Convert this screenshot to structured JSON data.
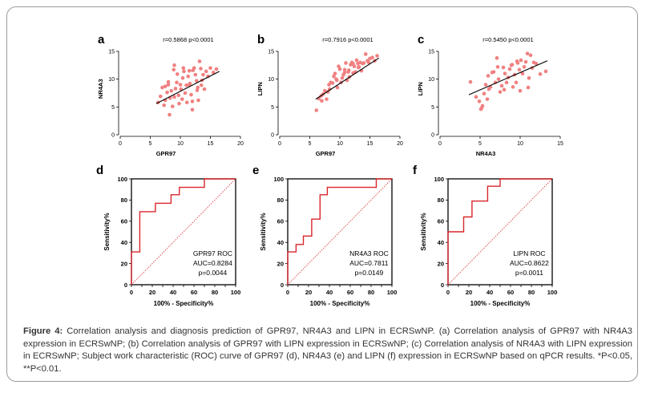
{
  "caption": {
    "label": "Figure 4:",
    "text": " Correlation analysis and diagnosis prediction of GPR97, NR4A3 and LIPN in ECRSwNP. (a) Correlation analysis of GPR97 with NR4A3 expression in ECRSwNP; (b) Correlation analysis of GPR97 with LIPN expression in ECRSwNP; (c) Correlation analysis of NR4A3 with LIPN expression in ECRSwNP; Subject work characteristic (ROC) curve of GPR97 (d), NR4A3 (e) and LIPN (f) expression in ECRSwNP based on qPCR results. *P<0.05, **P<0.01."
  },
  "colors": {
    "points": "#f08080",
    "roc": "#d8262b",
    "fit": "#000000",
    "axis": "#000000"
  },
  "chart_data": [
    {
      "panel": "a",
      "type": "scatter",
      "annotation": "r=0.5868  p<0.0001",
      "xlabel": "GPR97",
      "ylabel": "NR4A3",
      "xlim": [
        0,
        20
      ],
      "ylim": [
        0,
        15
      ],
      "xticks": [
        0,
        5,
        10,
        15,
        20
      ],
      "yticks": [
        0,
        5,
        10,
        15
      ],
      "fit": {
        "x": [
          6,
          16.5
        ],
        "y": [
          5.6,
          11.4
        ]
      },
      "x": [
        6.3,
        6.7,
        7.0,
        7.3,
        7.5,
        7.8,
        8.0,
        8.2,
        8.3,
        8.5,
        8.7,
        8.9,
        9.0,
        9.2,
        9.4,
        9.5,
        9.7,
        9.8,
        10.0,
        10.1,
        10.3,
        10.4,
        10.6,
        10.8,
        11.0,
        11.1,
        11.3,
        11.5,
        11.6,
        11.8,
        12.0,
        12.1,
        12.3,
        12.5,
        12.7,
        12.9,
        13.0,
        13.2,
        13.4,
        13.6,
        13.8,
        14.0,
        14.3,
        14.6,
        15.0,
        15.5,
        16.0,
        9.0,
        10.5,
        12.0,
        13.5,
        8.0,
        7.5,
        11.5,
        12.8
      ],
      "y": [
        5.8,
        6.9,
        8.5,
        5.3,
        6.2,
        7.6,
        9.5,
        3.6,
        6.6,
        7.9,
        5.1,
        11.7,
        6.8,
        8.3,
        9.4,
        10.9,
        7.1,
        5.6,
        9.0,
        8.2,
        6.4,
        10.2,
        11.4,
        7.5,
        8.9,
        5.8,
        10.5,
        11.5,
        9.2,
        7.2,
        6.0,
        11.6,
        12.0,
        10.8,
        9.7,
        8.5,
        6.2,
        13.2,
        11.9,
        9.8,
        10.8,
        8.2,
        11.4,
        10.5,
        12.0,
        11.2,
        11.8,
        12.5,
        12.0,
        4.5,
        8.9,
        9.0,
        8.7,
        9.0,
        8.0
      ]
    },
    {
      "panel": "b",
      "type": "scatter",
      "annotation": "r=0.7916  p<0.0001",
      "xlabel": "GPR97",
      "ylabel": "LIPN",
      "xlim": [
        0,
        20
      ],
      "ylim": [
        0,
        15
      ],
      "xticks": [
        0,
        5,
        10,
        15,
        20
      ],
      "yticks": [
        0,
        5,
        10,
        15
      ],
      "fit": {
        "x": [
          6,
          16.5
        ],
        "y": [
          6.4,
          13.8
        ]
      },
      "x": [
        6.1,
        6.5,
        6.9,
        7.2,
        7.5,
        7.8,
        8.0,
        8.3,
        8.5,
        8.8,
        9.0,
        9.2,
        9.4,
        9.6,
        9.8,
        10.0,
        10.2,
        10.4,
        10.6,
        10.8,
        11.0,
        11.2,
        11.4,
        11.6,
        11.8,
        12.0,
        12.2,
        12.4,
        12.6,
        12.8,
        13.0,
        13.2,
        13.4,
        13.6,
        13.8,
        14.0,
        14.3,
        14.6,
        15.0,
        15.4,
        15.8,
        16.2,
        8.2,
        9.5,
        10.8,
        12.2,
        13.1,
        14.8,
        7.0,
        11.5
      ],
      "y": [
        4.4,
        6.5,
        7.0,
        7.3,
        7.9,
        6.4,
        7.7,
        8.2,
        9.4,
        9.3,
        10.5,
        11.0,
        10.0,
        8.5,
        12.3,
        11.8,
        9.4,
        10.2,
        10.8,
        11.7,
        12.9,
        9.8,
        11.3,
        10.4,
        12.6,
        13.0,
        11.1,
        12.3,
        11.3,
        13.4,
        12.8,
        12.2,
        13.0,
        11.5,
        12.8,
        12.9,
        14.5,
        13.3,
        13.7,
        13.9,
        13.3,
        14.2,
        9.0,
        9.8,
        11.2,
        12.8,
        12.1,
        13.0,
        6.1,
        11.6
      ]
    },
    {
      "panel": "c",
      "type": "scatter",
      "annotation": "r=0.5450  p<0.0001",
      "xlabel": "NR4A3",
      "ylabel": "LIPN",
      "xlim": [
        0,
        15
      ],
      "ylim": [
        0,
        15
      ],
      "xticks": [
        0,
        5,
        10,
        15
      ],
      "yticks": [
        0,
        5,
        10,
        15
      ],
      "fit": {
        "x": [
          3.6,
          13.4
        ],
        "y": [
          7.2,
          13.3
        ]
      },
      "x": [
        3.8,
        4.5,
        4.9,
        5.1,
        5.3,
        5.5,
        5.7,
        5.9,
        6.1,
        6.3,
        6.5,
        6.7,
        6.9,
        7.1,
        7.3,
        7.5,
        7.7,
        7.9,
        8.1,
        8.3,
        8.5,
        8.7,
        8.9,
        9.1,
        9.3,
        9.5,
        9.7,
        9.9,
        10.1,
        10.3,
        10.5,
        10.7,
        10.9,
        11.1,
        11.3,
        11.5,
        11.7,
        12.0,
        12.5,
        13.2,
        6.0,
        8.0,
        9.0,
        10.0,
        11.0,
        5.2,
        7.2,
        9.6
      ],
      "y": [
        9.5,
        6.8,
        6.0,
        4.6,
        5.2,
        7.4,
        9.0,
        6.4,
        8.2,
        8.6,
        11.2,
        11.3,
        9.4,
        13.8,
        10.0,
        7.7,
        8.8,
        12.1,
        11.0,
        9.4,
        10.3,
        11.8,
        12.5,
        8.6,
        10.8,
        9.4,
        12.9,
        11.7,
        13.4,
        11.0,
        12.2,
        13.1,
        14.6,
        10.2,
        14.3,
        12.0,
        13.0,
        12.8,
        10.9,
        11.4,
        10.6,
        8.1,
        12.6,
        7.9,
        8.5,
        4.8,
        12.2,
        13.2
      ]
    },
    {
      "panel": "d",
      "type": "line",
      "label": "GPR97 ROC",
      "auc": "AUC=0.8284",
      "p": "p=0.0044",
      "xlabel": "100% - Specificity%",
      "ylabel": "Sensitivity%",
      "xlim": [
        0,
        100
      ],
      "ylim": [
        0,
        100
      ],
      "xticks": [
        0,
        10,
        20,
        30,
        40,
        50,
        60,
        70,
        80,
        90,
        100
      ],
      "yticks": [
        0,
        20,
        40,
        60,
        80,
        100
      ],
      "x": [
        0,
        0,
        8,
        8,
        15,
        23,
        23,
        30,
        38,
        38,
        46,
        46,
        54,
        54,
        70,
        70,
        100
      ],
      "y": [
        0,
        31,
        31,
        69,
        69,
        69,
        77,
        77,
        77,
        85,
        85,
        92,
        92,
        92,
        92,
        100,
        100
      ]
    },
    {
      "panel": "e",
      "type": "line",
      "label": "NR4A3 ROC",
      "auc": "AUC=0.7811",
      "p": "p=0.0149",
      "xlabel": "100% - Specificity%",
      "ylabel": "Sensitivity%",
      "xlim": [
        0,
        100
      ],
      "ylim": [
        0,
        100
      ],
      "xticks": [
        0,
        10,
        20,
        30,
        40,
        50,
        60,
        70,
        80,
        90,
        100
      ],
      "yticks": [
        0,
        20,
        40,
        60,
        80,
        100
      ],
      "x": [
        0,
        0,
        8,
        8,
        15,
        15,
        23,
        23,
        31,
        31,
        38,
        38,
        85,
        85,
        100
      ],
      "y": [
        0,
        31,
        31,
        38,
        38,
        46,
        46,
        62,
        62,
        85,
        85,
        92,
        92,
        100,
        100
      ]
    },
    {
      "panel": "f",
      "type": "line",
      "label": "LIPN ROC",
      "auc": "AUC=0.8622",
      "p": "p=0.0011",
      "xlabel": "100% - Specificity%",
      "ylabel": "Sensitivity%",
      "xlim": [
        0,
        100
      ],
      "ylim": [
        0,
        100
      ],
      "xticks": [
        0,
        10,
        20,
        30,
        40,
        50,
        60,
        70,
        80,
        90,
        100
      ],
      "yticks": [
        0,
        20,
        40,
        60,
        80,
        100
      ],
      "x": [
        0,
        0,
        15,
        15,
        23,
        23,
        38,
        38,
        50,
        50,
        100
      ],
      "y": [
        0,
        50,
        50,
        64,
        64,
        79,
        79,
        93,
        93,
        100,
        100
      ]
    }
  ]
}
